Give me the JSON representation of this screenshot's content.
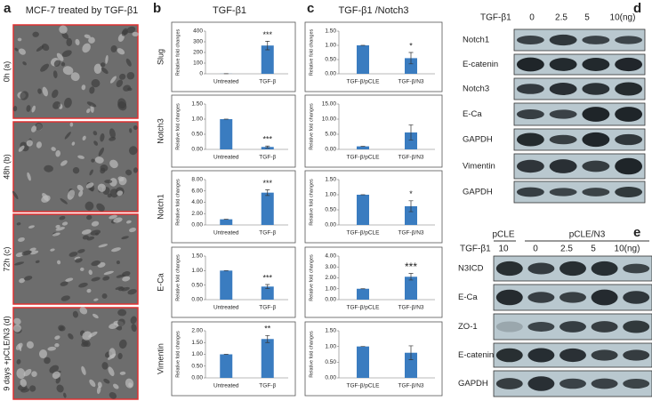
{
  "panels": {
    "a": {
      "letter": "a",
      "title": "MCF-7 treated by TGF-β1",
      "images": [
        "0h (a)",
        "48h (b)",
        "72h (c)",
        "9 days +pCLE/N3 (d)"
      ]
    },
    "b": {
      "letter": "b",
      "title": "TGF-β1"
    },
    "c": {
      "letter": "c",
      "title": "TGF-β1 /Notch3"
    },
    "d": {
      "letter": "d",
      "treatment": "TGF-β1",
      "lanes": [
        "0",
        "2.5",
        "5",
        "10(ng)"
      ],
      "rows": [
        "Notch1",
        "E-catenin",
        "Notch3",
        "E-Ca",
        "GAPDH",
        "Vimentin",
        "GAPDH"
      ]
    },
    "e": {
      "letter": "e",
      "groups": [
        "pCLE",
        "pCLE/N3"
      ],
      "treatment": "TGF-β1",
      "lanes": [
        "10",
        "0",
        "2.5",
        "5",
        "10(ng)"
      ],
      "rows": [
        "N3ICD",
        "E-Ca",
        "ZO-1",
        "E-catenin",
        "GAPDH"
      ]
    }
  },
  "chart_data": [
    {
      "type": "bar",
      "title": "Slug",
      "ylabel": "Relative fold changes",
      "categories": [
        "Untreated",
        "TGF-β"
      ],
      "values": [
        1,
        265
      ],
      "errors": [
        0,
        40
      ],
      "annotation": "***",
      "color": "#3a7cc0",
      "ylim": [
        0,
        400
      ],
      "yticks": [
        0,
        100,
        200,
        300,
        400
      ]
    },
    {
      "type": "bar",
      "title": "Notch3",
      "ylabel": "Relative fold changes",
      "categories": [
        "Untreated",
        "TGF-β"
      ],
      "values": [
        1.0,
        0.08
      ],
      "errors": [
        0,
        0.03
      ],
      "annotation": "***",
      "color": "#3a7cc0",
      "ylim": [
        0,
        1.5
      ],
      "yticks": [
        {
          "value": 0,
          "label": "0.00"
        },
        {
          "value": 0.5,
          "label": "0.50"
        },
        {
          "value": 1,
          "label": "1.00"
        },
        {
          "value": 1.5,
          "label": "1.50"
        }
      ]
    },
    {
      "type": "bar",
      "title": "Notch1",
      "ylabel": "Relative fold changes",
      "categories": [
        "Untreated",
        "TGF-β"
      ],
      "values": [
        1.0,
        5.7
      ],
      "errors": [
        0,
        0.5
      ],
      "annotation": "***",
      "color": "#3a7cc0",
      "ylim": [
        0,
        8
      ],
      "yticks": [
        {
          "value": 0,
          "label": "0.00"
        },
        {
          "value": 2,
          "label": "2.00"
        },
        {
          "value": 4,
          "label": "4.00"
        },
        {
          "value": 6,
          "label": "6.00"
        },
        {
          "value": 8,
          "label": "8.00"
        }
      ]
    },
    {
      "type": "bar",
      "title": "E-Ca",
      "ylabel": "Relative fold changes",
      "categories": [
        "Untreated",
        "TGF-β"
      ],
      "values": [
        1.0,
        0.45
      ],
      "errors": [
        0,
        0.07
      ],
      "annotation": "***",
      "color": "#3a7cc0",
      "ylim": [
        0,
        1.5
      ],
      "yticks": [
        {
          "value": 0,
          "label": "0.00"
        },
        {
          "value": 0.5,
          "label": "0.50"
        },
        {
          "value": 1,
          "label": "1.00"
        },
        {
          "value": 1.5,
          "label": "1.50"
        }
      ]
    },
    {
      "type": "bar",
      "title": "Vimentin",
      "ylabel": "Relative fold changes",
      "categories": [
        "Untreated",
        "TGF-β"
      ],
      "values": [
        1.0,
        1.65
      ],
      "errors": [
        0,
        0.15
      ],
      "annotation": "**",
      "color": "#3a7cc0",
      "ylim": [
        0,
        2
      ],
      "yticks": [
        {
          "value": 0,
          "label": "0.00"
        },
        {
          "value": 0.5,
          "label": "0.50"
        },
        {
          "value": 1,
          "label": "1.00"
        },
        {
          "value": 1.5,
          "label": "1.50"
        },
        {
          "value": 2,
          "label": "2.00"
        }
      ]
    },
    {
      "type": "bar",
      "ylabel": "Relative fold changes",
      "categories": [
        "TGF-β/pCLE",
        "TGF-β/N3"
      ],
      "values": [
        1.0,
        0.55
      ],
      "errors": [
        0,
        0.2
      ],
      "annotation": "*",
      "color": "#3a7cc0",
      "ylim": [
        0,
        1.5
      ],
      "yticks": [
        {
          "value": 0,
          "label": "0.00"
        },
        {
          "value": 0.5,
          "label": "0.50"
        },
        {
          "value": 1,
          "label": "1.00"
        },
        {
          "value": 1.5,
          "label": "1.50"
        }
      ]
    },
    {
      "type": "bar",
      "ylabel": "Relative fold changes",
      "categories": [
        "TGF-β/pCLE",
        "TGF-β/N3"
      ],
      "values": [
        1.0,
        5.6
      ],
      "errors": [
        0,
        2.5
      ],
      "color": "#3a7cc0",
      "ylim": [
        0,
        15
      ],
      "yticks": [
        {
          "value": 0,
          "label": "0.00"
        },
        {
          "value": 5,
          "label": "5.00"
        },
        {
          "value": 10,
          "label": "10.00"
        },
        {
          "value": 15,
          "label": "15.00"
        }
      ]
    },
    {
      "type": "bar",
      "ylabel": "Relative fold changes",
      "categories": [
        "TGF-β/pCLE",
        "TGF-β/N3"
      ],
      "values": [
        1.0,
        0.62
      ],
      "errors": [
        0,
        0.18
      ],
      "annotation": "*",
      "color": "#3a7cc0",
      "ylim": [
        0,
        1.5
      ],
      "yticks": [
        {
          "value": 0,
          "label": "0.00"
        },
        {
          "value": 0.5,
          "label": "0.50"
        },
        {
          "value": 1,
          "label": "1.00"
        },
        {
          "value": 1.5,
          "label": "1.50"
        }
      ]
    },
    {
      "type": "bar",
      "ylabel": "Relative fold changes",
      "categories": [
        "TGF-β/pCLE",
        "TGF-β/N3"
      ],
      "values": [
        1.0,
        2.1
      ],
      "errors": [
        0,
        0.3
      ],
      "annotation": "***",
      "color": "#3a7cc0",
      "ylim": [
        0,
        4
      ],
      "yticks": [
        {
          "value": 0,
          "label": "0.00"
        },
        {
          "value": 1,
          "label": "1.00"
        },
        {
          "value": 2,
          "label": "2.00"
        },
        {
          "value": 3,
          "label": "3.00"
        },
        {
          "value": 4,
          "label": "4.00"
        }
      ]
    },
    {
      "type": "bar",
      "ylabel": "Relative fold changes",
      "categories": [
        "TGF-β/pCLE",
        "TGF-β/N3"
      ],
      "values": [
        1.0,
        0.8
      ],
      "errors": [
        0,
        0.22
      ],
      "color": "#3a7cc0",
      "ylim": [
        0,
        1.5
      ],
      "yticks": [
        {
          "value": 0,
          "label": "0.00"
        },
        {
          "value": 0.5,
          "label": "0.50"
        },
        {
          "value": 1,
          "label": "1.00"
        },
        {
          "value": 1.5,
          "label": "1.50"
        }
      ]
    }
  ]
}
